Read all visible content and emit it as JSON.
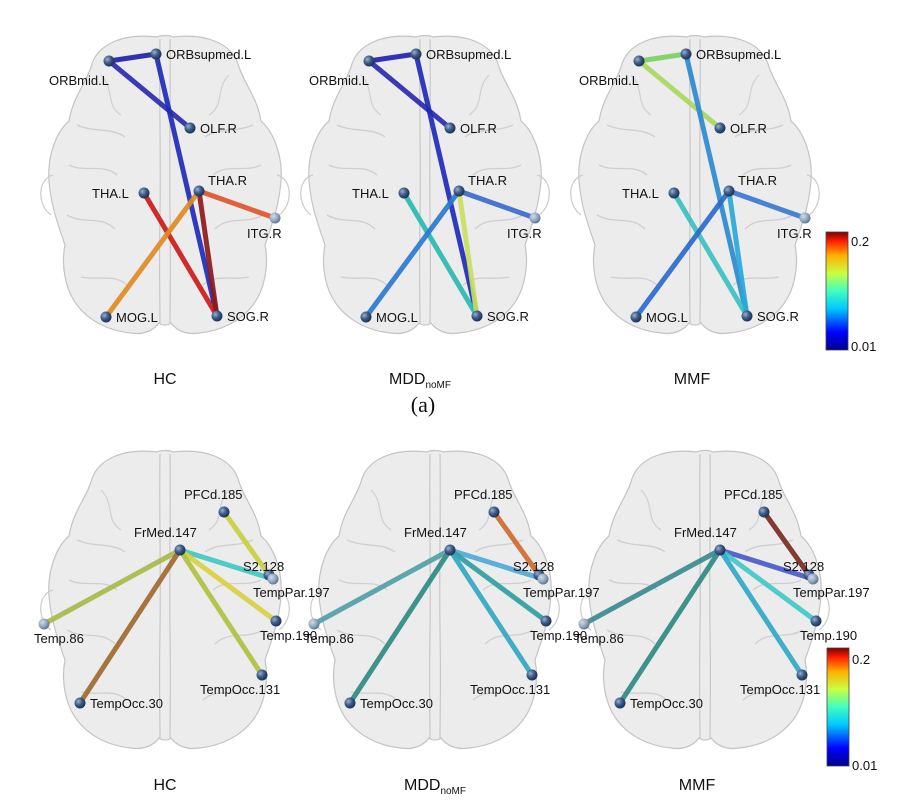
{
  "panel_a": {
    "caption": "(a)",
    "colorbar": {
      "max_label": "0.2",
      "min_label": "0.01"
    },
    "brains": [
      {
        "label_main": "HC",
        "label_sub": "",
        "nodes": [
          "ORBmid.L",
          "ORBsupmed.L",
          "OLF.R",
          "THA.L",
          "THA.R",
          "ITG.R",
          "MOG.L",
          "SOG.R"
        ],
        "edges": [
          {
            "from": "ORBmid.L",
            "to": "ORBsupmed.L",
            "color": "#2222aa"
          },
          {
            "from": "ORBmid.L",
            "to": "OLF.R",
            "color": "#2a2ab0"
          },
          {
            "from": "ORBsupmed.L",
            "to": "SOG.R",
            "color": "#1e2ab8"
          },
          {
            "from": "THA.L",
            "to": "SOG.R",
            "color": "#cc1a1a"
          },
          {
            "from": "THA.R",
            "to": "SOG.R",
            "color": "#8b1a1a"
          },
          {
            "from": "THA.R",
            "to": "ITG.R",
            "color": "#e0552a"
          },
          {
            "from": "THA.R",
            "to": "MOG.L",
            "color": "#e08a22"
          }
        ]
      },
      {
        "label_main": "MDD",
        "label_sub": "noMF",
        "nodes": [
          "ORBmid.L",
          "ORBsupmed.L",
          "OLF.R",
          "THA.L",
          "THA.R",
          "ITG.R",
          "MOG.L",
          "SOG.R"
        ],
        "edges": [
          {
            "from": "ORBmid.L",
            "to": "ORBsupmed.L",
            "color": "#2222b0"
          },
          {
            "from": "ORBmid.L",
            "to": "OLF.R",
            "color": "#2a2ab0"
          },
          {
            "from": "ORBsupmed.L",
            "to": "SOG.R",
            "color": "#1e2ab8"
          },
          {
            "from": "THA.L",
            "to": "SOG.R",
            "color": "#2ab8b0"
          },
          {
            "from": "THA.R",
            "to": "SOG.R",
            "color": "#c8e060"
          },
          {
            "from": "THA.R",
            "to": "ITG.R",
            "color": "#3a6acc"
          },
          {
            "from": "THA.R",
            "to": "MOG.L",
            "color": "#2a7ad0"
          }
        ]
      },
      {
        "label_main": "MMF",
        "label_sub": "",
        "nodes": [
          "ORBmid.L",
          "ORBsupmed.L",
          "OLF.R",
          "THA.L",
          "THA.R",
          "ITG.R",
          "MOG.L",
          "SOG.R"
        ],
        "edges": [
          {
            "from": "ORBmid.L",
            "to": "ORBsupmed.L",
            "color": "#7ed060"
          },
          {
            "from": "ORBmid.L",
            "to": "OLF.R",
            "color": "#a8d860"
          },
          {
            "from": "ORBsupmed.L",
            "to": "SOG.R",
            "color": "#2a8ad0"
          },
          {
            "from": "THA.L",
            "to": "SOG.R",
            "color": "#3ac0c0"
          },
          {
            "from": "THA.R",
            "to": "SOG.R",
            "color": "#2aa8d8"
          },
          {
            "from": "THA.R",
            "to": "ITG.R",
            "color": "#3a7ad0"
          },
          {
            "from": "THA.R",
            "to": "MOG.L",
            "color": "#2a6acc"
          }
        ]
      }
    ]
  },
  "panel_b": {
    "colorbar": {
      "max_label": "0.2",
      "min_label": "0.01"
    },
    "brains": [
      {
        "label_main": "HC",
        "label_sub": "",
        "nodes": [
          "PFCd.185",
          "FrMed.147",
          "S2.128",
          "TempPar.197",
          "Temp.86",
          "Temp.190",
          "TempOcc.131",
          "TempOcc.30"
        ],
        "edges": [
          {
            "from": "PFCd.185",
            "to": "S2.128",
            "color": "#c8d040"
          },
          {
            "from": "FrMed.147",
            "to": "TempPar.197",
            "color": "#40c8c0"
          },
          {
            "from": "FrMed.147",
            "to": "Temp.190",
            "color": "#d8d040"
          },
          {
            "from": "FrMed.147",
            "to": "TempOcc.131",
            "color": "#b0c040"
          },
          {
            "from": "FrMed.147",
            "to": "Temp.86",
            "color": "#a8b848"
          },
          {
            "from": "FrMed.147",
            "to": "TempOcc.30",
            "color": "#a06a30"
          }
        ]
      },
      {
        "label_main": "MDD",
        "label_sub": "noMF",
        "nodes": [
          "PFCd.185",
          "FrMed.147",
          "S2.128",
          "TempPar.197",
          "Temp.86",
          "Temp.190",
          "TempOcc.131",
          "TempOcc.30"
        ],
        "edges": [
          {
            "from": "PFCd.185",
            "to": "S2.128",
            "color": "#d06a30"
          },
          {
            "from": "FrMed.147",
            "to": "TempPar.197",
            "color": "#50a8d8"
          },
          {
            "from": "FrMed.147",
            "to": "Temp.190",
            "color": "#30a0a0"
          },
          {
            "from": "FrMed.147",
            "to": "TempOcc.131",
            "color": "#30a8c0"
          },
          {
            "from": "FrMed.147",
            "to": "Temp.86",
            "color": "#50a0a8"
          },
          {
            "from": "FrMed.147",
            "to": "TempOcc.30",
            "color": "#2e8a80"
          }
        ]
      },
      {
        "label_main": "MMF",
        "label_sub": "",
        "nodes": [
          "PFCd.185",
          "FrMed.147",
          "S2.128",
          "TempPar.197",
          "Temp.86",
          "Temp.190",
          "TempOcc.131",
          "TempOcc.30"
        ],
        "edges": [
          {
            "from": "PFCd.185",
            "to": "S2.128",
            "color": "#7a2a22"
          },
          {
            "from": "FrMed.147",
            "to": "TempPar.197",
            "color": "#4a5acc"
          },
          {
            "from": "FrMed.147",
            "to": "Temp.190",
            "color": "#40c8c8"
          },
          {
            "from": "FrMed.147",
            "to": "TempOcc.131",
            "color": "#30a8c8"
          },
          {
            "from": "FrMed.147",
            "to": "Temp.86",
            "color": "#3a8a90"
          },
          {
            "from": "FrMed.147",
            "to": "TempOcc.30",
            "color": "#2e8a80"
          }
        ]
      }
    ]
  }
}
